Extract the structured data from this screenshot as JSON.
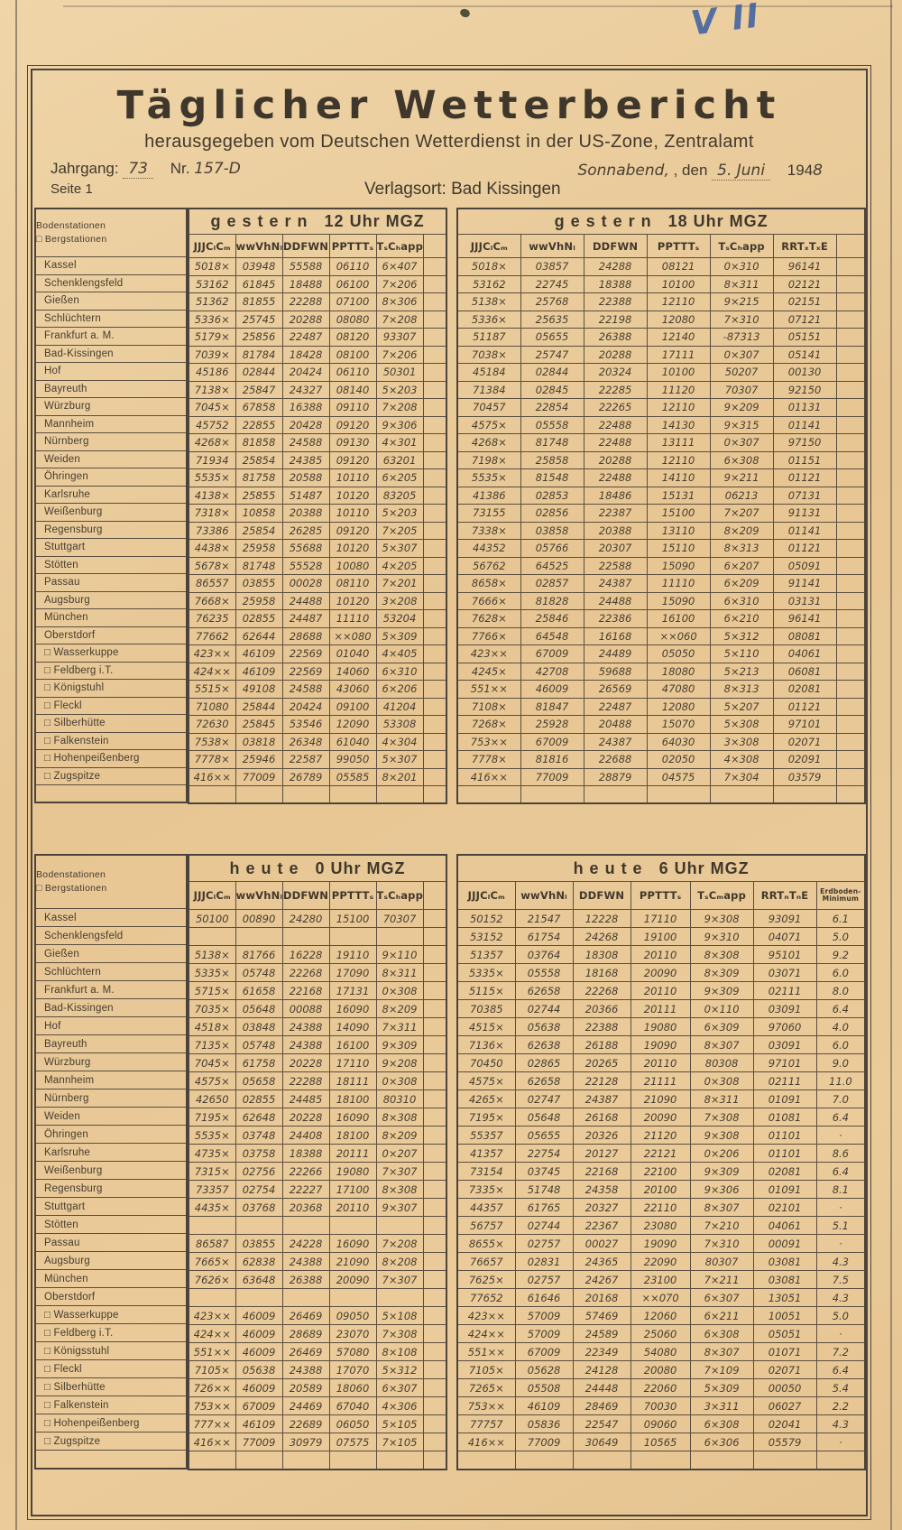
{
  "annotations": {
    "corner_mark": "V II"
  },
  "header": {
    "title": "Täglicher Wetterbericht",
    "subtitle": "herausgegeben vom Deutschen Wetterdienst in der US-Zone, Zentralamt",
    "jahrgang_label": "Jahrgang:",
    "jahrgang_value": "73",
    "nr_label": "Nr.",
    "nr_value": "157-D",
    "day_value": "Sonnabend,",
    "den_label": ", den",
    "date_value": "5. Juni",
    "year_printed": "194",
    "year_written": "8",
    "seite": "Seite 1",
    "verlagsort": "Verlagsort: Bad Kissingen"
  },
  "station_legend": {
    "line1": "Bodenstationen",
    "line2": "□ Bergstationen"
  },
  "stations_top": [
    "Kassel",
    "Schenklengsfeld",
    "Gießen",
    "Schlüchtern",
    "Frankfurt a. M.",
    "Bad-Kissingen",
    "Hof",
    "Bayreuth",
    "Würzburg",
    "Mannheim",
    "Nürnberg",
    "Weiden",
    "Öhringen",
    "Karlsruhe",
    "Weißenburg",
    "Regensburg",
    "Stuttgart",
    "Stötten",
    "Passau",
    "Augsburg",
    "München",
    "Oberstdorf",
    "□ Wasserkuppe",
    "□ Feldberg i.T.",
    "□ Königstuhl",
    "□ Fleckl",
    "□ Silberhütte",
    "□ Falkenstein",
    "□ Hohenpeißenberg",
    "□ Zugspitze"
  ],
  "stations_bottom": [
    "Kassel",
    "Schenklengsfeld",
    "Gießen",
    "Schlüchtern",
    "Frankfurt a. M.",
    "Bad-Kissingen",
    "Hof",
    "Bayreuth",
    "Würzburg",
    "Mannheim",
    "Nürnberg",
    "Weiden",
    "Öhringen",
    "Karlsruhe",
    "Weißenburg",
    "Regensburg",
    "Stuttgart",
    "Stötten",
    "Passau",
    "Augsburg",
    "München",
    "Oberstdorf",
    "□ Wasserkuppe",
    "□ Feldberg i.T.",
    "□ Königsstuhl",
    "□ Fleckl",
    "□ Silberhütte",
    "□ Falkenstein",
    "□ Hohenpeißenberg",
    "□ Zugspitze"
  ],
  "tables": [
    {
      "id": "t12",
      "title_word": "gestern",
      "title_time": "12 Uhr MGZ",
      "columns": [
        "JJJCₗCₘ",
        "wwVhNₗ",
        "DDFWN",
        "PPTTTₛ",
        "TₛCₕapp"
      ],
      "rows": [
        [
          "5018×",
          "03948",
          "55588",
          "06110",
          "6×407"
        ],
        [
          "53162",
          "61845",
          "18488",
          "06100",
          "7×206"
        ],
        [
          "51362",
          "81855",
          "22288",
          "07100",
          "8×306"
        ],
        [
          "5336×",
          "25745",
          "20288",
          "08080",
          "7×208"
        ],
        [
          "5179×",
          "25856",
          "22487",
          "08120",
          "93307"
        ],
        [
          "7039×",
          "81784",
          "18428",
          "08100",
          "7×206"
        ],
        [
          "45186",
          "02844",
          "20424",
          "06110",
          "50301"
        ],
        [
          "7138×",
          "25847",
          "24327",
          "08140",
          "5×203"
        ],
        [
          "7045×",
          "67858",
          "16388",
          "09110",
          "7×208"
        ],
        [
          "45752",
          "22855",
          "20428",
          "09120",
          "9×306"
        ],
        [
          "4268×",
          "81858",
          "24588",
          "09130",
          "4×301"
        ],
        [
          "71934",
          "25854",
          "24385",
          "09120",
          "63201"
        ],
        [
          "5535×",
          "81758",
          "20588",
          "10110",
          "6×205"
        ],
        [
          "4138×",
          "25855",
          "51487",
          "10120",
          "83205"
        ],
        [
          "7318×",
          "10858",
          "20388",
          "10110",
          "5×203"
        ],
        [
          "73386",
          "25854",
          "26285",
          "09120",
          "7×205"
        ],
        [
          "4438×",
          "25958",
          "55688",
          "10120",
          "5×307"
        ],
        [
          "5678×",
          "81748",
          "55528",
          "10080",
          "4×205"
        ],
        [
          "86557",
          "03855",
          "00028",
          "08110",
          "7×201"
        ],
        [
          "7668×",
          "25958",
          "24488",
          "10120",
          "3×208"
        ],
        [
          "76235",
          "02855",
          "24487",
          "11110",
          "53204"
        ],
        [
          "77662",
          "62644",
          "28688",
          "××080",
          "5×309"
        ],
        [
          "423××",
          "46109",
          "22569",
          "01040",
          "4×405"
        ],
        [
          "424××",
          "46109",
          "22569",
          "14060",
          "6×310"
        ],
        [
          "5515×",
          "49108",
          "24588",
          "43060",
          "6×206"
        ],
        [
          "71080",
          "25844",
          "20424",
          "09100",
          "41204"
        ],
        [
          "72630",
          "25845",
          "53546",
          "12090",
          "53308"
        ],
        [
          "7538×",
          "03818",
          "26348",
          "61040",
          "4×304"
        ],
        [
          "7778×",
          "25946",
          "22587",
          "99050",
          "5×307"
        ],
        [
          "416××",
          "77009",
          "26789",
          "05585",
          "8×201"
        ]
      ]
    },
    {
      "id": "t18",
      "title_word": "gestern",
      "title_time": "18 Uhr MGZ",
      "columns": [
        "JJJCₗCₘ",
        "wwVhNₗ",
        "DDFWN",
        "PPTTTₛ",
        "TₛCₕapp",
        "RRTₓTₓE"
      ],
      "rows": [
        [
          "5018×",
          "03857",
          "24288",
          "08121",
          "0×310",
          "96141"
        ],
        [
          "53162",
          "22745",
          "18388",
          "10100",
          "8×311",
          "02121"
        ],
        [
          "5138×",
          "25768",
          "22388",
          "12110",
          "9×215",
          "02151"
        ],
        [
          "5336×",
          "25635",
          "22198",
          "12080",
          "7×310",
          "07121"
        ],
        [
          "51187",
          "05655",
          "26388",
          "12140",
          "-87313",
          "05151"
        ],
        [
          "7038×",
          "25747",
          "20288",
          "17111",
          "0×307",
          "05141"
        ],
        [
          "45184",
          "02844",
          "20324",
          "10100",
          "50207",
          "00130"
        ],
        [
          "71384",
          "02845",
          "22285",
          "11120",
          "70307",
          "92150"
        ],
        [
          "70457",
          "22854",
          "22265",
          "12110",
          "9×209",
          "01131"
        ],
        [
          "4575×",
          "05558",
          "22488",
          "14130",
          "9×315",
          "01141"
        ],
        [
          "4268×",
          "81748",
          "22488",
          "13111",
          "0×307",
          "97150"
        ],
        [
          "7198×",
          "25858",
          "20288",
          "12110",
          "6×308",
          "01151"
        ],
        [
          "5535×",
          "81548",
          "22488",
          "14110",
          "9×211",
          "01121"
        ],
        [
          "41386",
          "02853",
          "18486",
          "15131",
          "06213",
          "07131"
        ],
        [
          "73155",
          "02856",
          "22387",
          "15100",
          "7×207",
          "91131"
        ],
        [
          "7338×",
          "03858",
          "20388",
          "13110",
          "8×209",
          "01141"
        ],
        [
          "44352",
          "05766",
          "20307",
          "15110",
          "8×313",
          "01121"
        ],
        [
          "56762",
          "64525",
          "22588",
          "15090",
          "6×207",
          "05091"
        ],
        [
          "8658×",
          "02857",
          "24387",
          "11110",
          "6×209",
          "91141"
        ],
        [
          "7666×",
          "81828",
          "24488",
          "15090",
          "6×310",
          "03131"
        ],
        [
          "7628×",
          "25846",
          "22386",
          "16100",
          "6×210",
          "96141"
        ],
        [
          "7766×",
          "64548",
          "16168",
          "××060",
          "5×312",
          "08081"
        ],
        [
          "423××",
          "67009",
          "24489",
          "05050",
          "5×110",
          "04061"
        ],
        [
          "4245×",
          "42708",
          "59688",
          "18080",
          "5×213",
          "06081"
        ],
        [
          "551××",
          "46009",
          "26569",
          "47080",
          "8×313",
          "02081"
        ],
        [
          "7108×",
          "81847",
          "22487",
          "12080",
          "5×207",
          "01121"
        ],
        [
          "7268×",
          "25928",
          "20488",
          "15070",
          "5×308",
          "97101"
        ],
        [
          "753××",
          "67009",
          "24387",
          "64030",
          "3×308",
          "02071"
        ],
        [
          "7778×",
          "81816",
          "22688",
          "02050",
          "4×308",
          "02091"
        ],
        [
          "416××",
          "77009",
          "28879",
          "04575",
          "7×304",
          "03579"
        ]
      ]
    },
    {
      "id": "t0",
      "title_word": "heute",
      "title_time": "0 Uhr MGZ",
      "columns": [
        "JJJCₗCₘ",
        "wwVhNₗ",
        "DDFWN",
        "PPTTTₛ",
        "TₛCₕapp"
      ],
      "rows": [
        [
          "50100",
          "00890",
          "24280",
          "15100",
          "70307"
        ],
        [
          "",
          "",
          "",
          "",
          ""
        ],
        [
          "5138×",
          "81766",
          "16228",
          "19110",
          "9×110"
        ],
        [
          "5335×",
          "05748",
          "22268",
          "17090",
          "8×311"
        ],
        [
          "5715×",
          "61658",
          "22168",
          "17131",
          "0×308"
        ],
        [
          "7035×",
          "05648",
          "00088",
          "16090",
          "8×209"
        ],
        [
          "4518×",
          "03848",
          "24388",
          "14090",
          "7×311"
        ],
        [
          "7135×",
          "05748",
          "24388",
          "16100",
          "9×309"
        ],
        [
          "7045×",
          "61758",
          "20228",
          "17110",
          "9×208"
        ],
        [
          "4575×",
          "05658",
          "22288",
          "18111",
          "0×308"
        ],
        [
          "42650",
          "02855",
          "24485",
          "18100",
          "80310"
        ],
        [
          "7195×",
          "62648",
          "20228",
          "16090",
          "8×308"
        ],
        [
          "5535×",
          "03748",
          "24408",
          "18100",
          "8×209"
        ],
        [
          "4735×",
          "03758",
          "18388",
          "20111",
          "0×207"
        ],
        [
          "7315×",
          "02756",
          "22266",
          "19080",
          "7×307"
        ],
        [
          "73357",
          "02754",
          "22227",
          "17100",
          "8×308"
        ],
        [
          "4435×",
          "03768",
          "20368",
          "20110",
          "9×307"
        ],
        [
          "",
          "",
          "",
          "",
          ""
        ],
        [
          "86587",
          "03855",
          "24228",
          "16090",
          "7×208"
        ],
        [
          "7665×",
          "62838",
          "24388",
          "21090",
          "8×208"
        ],
        [
          "7626×",
          "63648",
          "26388",
          "20090",
          "7×307"
        ],
        [
          "",
          "",
          "",
          "",
          ""
        ],
        [
          "423××",
          "46009",
          "26469",
          "09050",
          "5×108"
        ],
        [
          "424××",
          "46009",
          "28689",
          "23070",
          "7×308"
        ],
        [
          "551××",
          "46009",
          "26469",
          "57080",
          "8×108"
        ],
        [
          "7105×",
          "05638",
          "24388",
          "17070",
          "5×312"
        ],
        [
          "726××",
          "46009",
          "20589",
          "18060",
          "6×307"
        ],
        [
          "753××",
          "67009",
          "24469",
          "67040",
          "4×306"
        ],
        [
          "777××",
          "46109",
          "22689",
          "06050",
          "5×105"
        ],
        [
          "416××",
          "77009",
          "30979",
          "07575",
          "7×105"
        ]
      ]
    },
    {
      "id": "t6",
      "title_word": "heute",
      "title_time": "6 Uhr MGZ",
      "columns": [
        "JJJCₗCₘ",
        "wwVhNₗ",
        "DDFWN",
        "PPTTTₛ",
        "TₛCₘapp",
        "RRTₙTₙE",
        "Erdboden-Minimum"
      ],
      "rows": [
        [
          "50152",
          "21547",
          "12228",
          "17110",
          "9×308",
          "93091",
          "6.1"
        ],
        [
          "53152",
          "61754",
          "24268",
          "19100",
          "9×310",
          "04071",
          "5.0"
        ],
        [
          "51357",
          "03764",
          "18308",
          "20110",
          "8×308",
          "95101",
          "9.2"
        ],
        [
          "5335×",
          "05558",
          "18168",
          "20090",
          "8×309",
          "03071",
          "6.0"
        ],
        [
          "5115×",
          "62658",
          "22268",
          "20110",
          "9×309",
          "02111",
          "8.0"
        ],
        [
          "70385",
          "02744",
          "20366",
          "20111",
          "0×110",
          "03091",
          "6.4"
        ],
        [
          "4515×",
          "05638",
          "22388",
          "19080",
          "6×309",
          "97060",
          "4.0"
        ],
        [
          "7136×",
          "62638",
          "26188",
          "19090",
          "8×307",
          "03091",
          "6.0"
        ],
        [
          "70450",
          "02865",
          "20265",
          "20110",
          "80308",
          "97101",
          "9.0"
        ],
        [
          "4575×",
          "62658",
          "22128",
          "21111",
          "0×308",
          "02111",
          "11.0"
        ],
        [
          "4265×",
          "02747",
          "24387",
          "21090",
          "8×311",
          "01091",
          "7.0"
        ],
        [
          "7195×",
          "05648",
          "26168",
          "20090",
          "7×308",
          "01081",
          "6.4"
        ],
        [
          "55357",
          "05655",
          "20326",
          "21120",
          "9×308",
          "01101",
          "·"
        ],
        [
          "41357",
          "22754",
          "20127",
          "22121",
          "0×206",
          "01101",
          "8.6"
        ],
        [
          "73154",
          "03745",
          "22168",
          "22100",
          "9×309",
          "02081",
          "6.4"
        ],
        [
          "7335×",
          "51748",
          "24358",
          "20100",
          "9×306",
          "01091",
          "8.1"
        ],
        [
          "44357",
          "61765",
          "20327",
          "22110",
          "8×307",
          "02101",
          "·"
        ],
        [
          "56757",
          "02744",
          "22367",
          "23080",
          "7×210",
          "04061",
          "5.1"
        ],
        [
          "8655×",
          "02757",
          "00027",
          "19090",
          "7×310",
          "00091",
          "·"
        ],
        [
          "76657",
          "02831",
          "24365",
          "22090",
          "80307",
          "03081",
          "4.3"
        ],
        [
          "7625×",
          "02757",
          "24267",
          "23100",
          "7×211",
          "03081",
          "7.5"
        ],
        [
          "77652",
          "61646",
          "20168",
          "××070",
          "6×307",
          "13051",
          "4.3"
        ],
        [
          "423××",
          "57009",
          "57469",
          "12060",
          "6×211",
          "10051",
          "5.0"
        ],
        [
          "424××",
          "57009",
          "24589",
          "25060",
          "6×308",
          "05051",
          "·"
        ],
        [
          "551××",
          "67009",
          "22349",
          "54080",
          "8×307",
          "01071",
          "7.2"
        ],
        [
          "7105×",
          "05628",
          "24128",
          "20080",
          "7×109",
          "02071",
          "6.4"
        ],
        [
          "7265×",
          "05508",
          "24448",
          "22060",
          "5×309",
          "00050",
          "5.4"
        ],
        [
          "753××",
          "46109",
          "28469",
          "70030",
          "3×311",
          "06027",
          "2.2"
        ],
        [
          "77757",
          "05836",
          "22547",
          "09060",
          "6×308",
          "02041",
          "4.3"
        ],
        [
          "416××",
          "77009",
          "30649",
          "10565",
          "6×306",
          "05579",
          "·"
        ]
      ]
    }
  ]
}
